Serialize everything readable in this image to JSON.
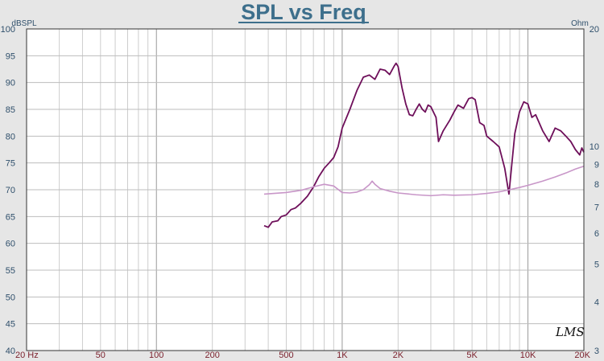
{
  "chart_data": {
    "type": "line",
    "title": "SPL vs Freq",
    "y_left_unit": "dBSPL",
    "y_right_unit": "Ohm",
    "watermark": "LMS",
    "x_scale": "log",
    "xlim": [
      20,
      20000
    ],
    "ylim_left": [
      40,
      100
    ],
    "ylim_right": [
      3,
      20
    ],
    "x_ticks": [
      {
        "value": 20,
        "label": "20  Hz"
      },
      {
        "value": 50,
        "label": "50"
      },
      {
        "value": 100,
        "label": "100"
      },
      {
        "value": 200,
        "label": "200"
      },
      {
        "value": 500,
        "label": "500"
      },
      {
        "value": 1000,
        "label": "1K"
      },
      {
        "value": 2000,
        "label": "2K"
      },
      {
        "value": 5000,
        "label": "5K"
      },
      {
        "value": 10000,
        "label": "10K"
      },
      {
        "value": 20000,
        "label": "20K"
      }
    ],
    "y_left_ticks": [
      100,
      95,
      90,
      85,
      80,
      75,
      70,
      65,
      60,
      55,
      50,
      45,
      40
    ],
    "y_right_ticks": [
      20,
      10,
      9,
      8,
      7,
      6,
      5,
      4,
      3
    ],
    "right_scale": "log",
    "grid": true,
    "series": [
      {
        "axis": "left",
        "color": "#6e0f5a",
        "points": [
          [
            380,
            63.3
          ],
          [
            400,
            63.0
          ],
          [
            420,
            64.0
          ],
          [
            450,
            64.2
          ],
          [
            470,
            65.0
          ],
          [
            500,
            65.3
          ],
          [
            530,
            66.3
          ],
          [
            560,
            66.6
          ],
          [
            600,
            67.5
          ],
          [
            650,
            68.8
          ],
          [
            700,
            70.5
          ],
          [
            750,
            72.5
          ],
          [
            800,
            74.0
          ],
          [
            850,
            75.0
          ],
          [
            900,
            76.0
          ],
          [
            950,
            78.0
          ],
          [
            1000,
            81.5
          ],
          [
            1100,
            85.0
          ],
          [
            1200,
            88.5
          ],
          [
            1300,
            91.0
          ],
          [
            1400,
            91.4
          ],
          [
            1500,
            90.6
          ],
          [
            1600,
            92.5
          ],
          [
            1700,
            92.3
          ],
          [
            1800,
            91.5
          ],
          [
            1900,
            93.0
          ],
          [
            1950,
            93.6
          ],
          [
            2000,
            93.0
          ],
          [
            2100,
            89.0
          ],
          [
            2200,
            86.0
          ],
          [
            2300,
            84.0
          ],
          [
            2400,
            83.8
          ],
          [
            2500,
            85.0
          ],
          [
            2600,
            86.0
          ],
          [
            2700,
            85.0
          ],
          [
            2800,
            84.5
          ],
          [
            2900,
            85.8
          ],
          [
            3000,
            85.5
          ],
          [
            3200,
            83.5
          ],
          [
            3300,
            79.0
          ],
          [
            3500,
            81.0
          ],
          [
            3800,
            83.0
          ],
          [
            4000,
            84.5
          ],
          [
            4200,
            85.8
          ],
          [
            4500,
            85.2
          ],
          [
            4800,
            87.0
          ],
          [
            5000,
            87.2
          ],
          [
            5200,
            86.8
          ],
          [
            5500,
            82.5
          ],
          [
            5800,
            82.0
          ],
          [
            6000,
            80.0
          ],
          [
            6500,
            79.0
          ],
          [
            7000,
            78.0
          ],
          [
            7500,
            74.0
          ],
          [
            7900,
            69.2
          ],
          [
            8200,
            75.0
          ],
          [
            8500,
            80.5
          ],
          [
            9000,
            84.5
          ],
          [
            9500,
            86.4
          ],
          [
            10000,
            86.0
          ],
          [
            10500,
            83.5
          ],
          [
            11000,
            84.0
          ],
          [
            12000,
            81.0
          ],
          [
            13000,
            79.0
          ],
          [
            14000,
            81.5
          ],
          [
            15000,
            81.0
          ],
          [
            16000,
            80.0
          ],
          [
            17000,
            79.0
          ],
          [
            18000,
            77.5
          ],
          [
            19000,
            76.5
          ],
          [
            19500,
            77.8
          ],
          [
            20000,
            77.0
          ]
        ]
      },
      {
        "axis": "right",
        "color": "#c896c8",
        "points": [
          [
            380,
            7.55
          ],
          [
            500,
            7.62
          ],
          [
            600,
            7.72
          ],
          [
            700,
            7.88
          ],
          [
            800,
            8.0
          ],
          [
            900,
            7.92
          ],
          [
            1000,
            7.62
          ],
          [
            1100,
            7.6
          ],
          [
            1200,
            7.64
          ],
          [
            1300,
            7.75
          ],
          [
            1400,
            7.98
          ],
          [
            1450,
            8.15
          ],
          [
            1500,
            8.0
          ],
          [
            1600,
            7.8
          ],
          [
            1800,
            7.68
          ],
          [
            2000,
            7.6
          ],
          [
            2500,
            7.52
          ],
          [
            3000,
            7.48
          ],
          [
            3500,
            7.52
          ],
          [
            4000,
            7.5
          ],
          [
            5000,
            7.52
          ],
          [
            6000,
            7.58
          ],
          [
            7000,
            7.65
          ],
          [
            8000,
            7.75
          ],
          [
            9000,
            7.85
          ],
          [
            10000,
            7.95
          ],
          [
            12000,
            8.15
          ],
          [
            14000,
            8.35
          ],
          [
            16000,
            8.55
          ],
          [
            18000,
            8.75
          ],
          [
            20000,
            8.9
          ]
        ]
      }
    ]
  }
}
